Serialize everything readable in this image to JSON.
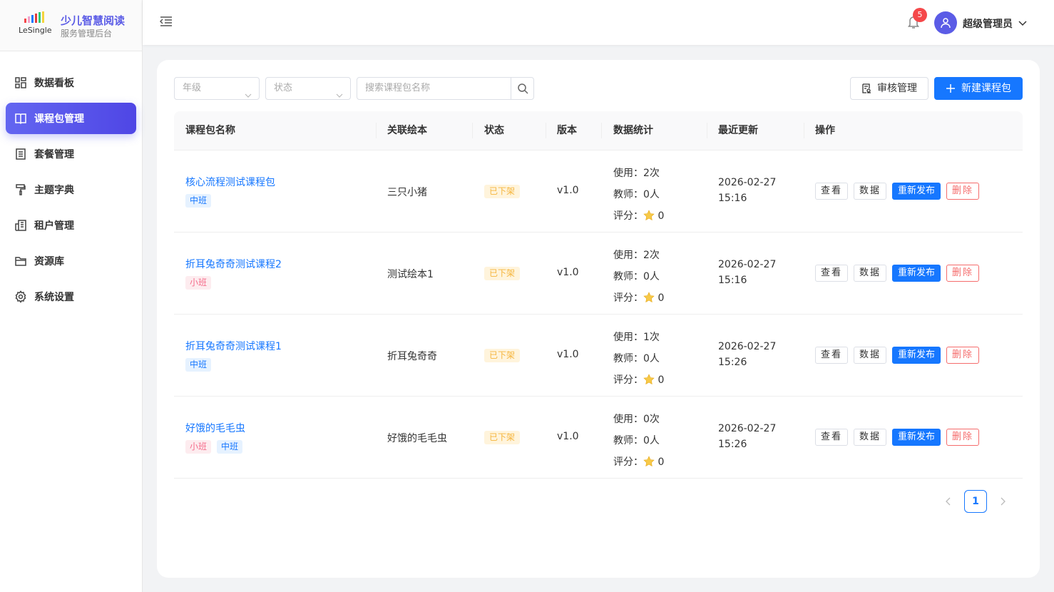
{
  "brand": {
    "logo_text": "LeSingle",
    "title": "少儿智慧阅读",
    "subtitle": "服务管理后台"
  },
  "sidebar": {
    "items": [
      {
        "label": "数据看板",
        "icon": "dashboard-icon",
        "active": false
      },
      {
        "label": "课程包管理",
        "icon": "book-icon",
        "active": true
      },
      {
        "label": "套餐管理",
        "icon": "list-icon",
        "active": false
      },
      {
        "label": "主题字典",
        "icon": "paint-roller-icon",
        "active": false
      },
      {
        "label": "租户管理",
        "icon": "building-icon",
        "active": false
      },
      {
        "label": "资源库",
        "icon": "folder-icon",
        "active": false
      },
      {
        "label": "系统设置",
        "icon": "gear-icon",
        "active": false
      }
    ]
  },
  "header": {
    "notification_count": "5",
    "username": "超级管理员"
  },
  "filters": {
    "grade_placeholder": "年级",
    "status_placeholder": "状态",
    "search_placeholder": "搜索课程包名称"
  },
  "toolbar": {
    "audit_label": "审核管理",
    "new_label": "新建课程包"
  },
  "table": {
    "headers": [
      "课程包名称",
      "关联绘本",
      "状态",
      "版本",
      "数据统计",
      "最近更新",
      "操作"
    ],
    "stat_labels": {
      "usage": "使用：",
      "teacher": "教师：",
      "rating": "评分："
    },
    "actions": {
      "view": "查看",
      "data": "数据",
      "republish": "重新发布",
      "delete": "删除"
    },
    "rows": [
      {
        "name": "核心流程测试课程包",
        "tags": [
          {
            "label": "中班",
            "kind": "mid"
          }
        ],
        "book": "三只小猪",
        "status": "已下架",
        "version": "v1.0",
        "usage": "2次",
        "teachers": "0人",
        "rating": "0",
        "date": "2026-02-27",
        "time": "15:16"
      },
      {
        "name": "折耳兔奇奇测试课程2",
        "tags": [
          {
            "label": "小班",
            "kind": "small"
          }
        ],
        "book": "测试绘本1",
        "status": "已下架",
        "version": "v1.0",
        "usage": "2次",
        "teachers": "0人",
        "rating": "0",
        "date": "2026-02-27",
        "time": "15:16"
      },
      {
        "name": "折耳兔奇奇测试课程1",
        "tags": [
          {
            "label": "中班",
            "kind": "mid"
          }
        ],
        "book": "折耳兔奇奇",
        "status": "已下架",
        "version": "v1.0",
        "usage": "1次",
        "teachers": "0人",
        "rating": "0",
        "date": "2026-02-27",
        "time": "15:26"
      },
      {
        "name": "好饿的毛毛虫",
        "tags": [
          {
            "label": "小班",
            "kind": "small"
          },
          {
            "label": "中班",
            "kind": "mid"
          }
        ],
        "book": "好饿的毛毛虫",
        "status": "已下架",
        "version": "v1.0",
        "usage": "0次",
        "teachers": "0人",
        "rating": "0",
        "date": "2026-02-27",
        "time": "15:26"
      }
    ]
  },
  "pagination": {
    "current": "1"
  },
  "colors": {
    "primary": "#1677ff",
    "sidebar_active": "#5b5ce6",
    "danger": "#f56c6c",
    "status_offline": "#f5b53d"
  }
}
